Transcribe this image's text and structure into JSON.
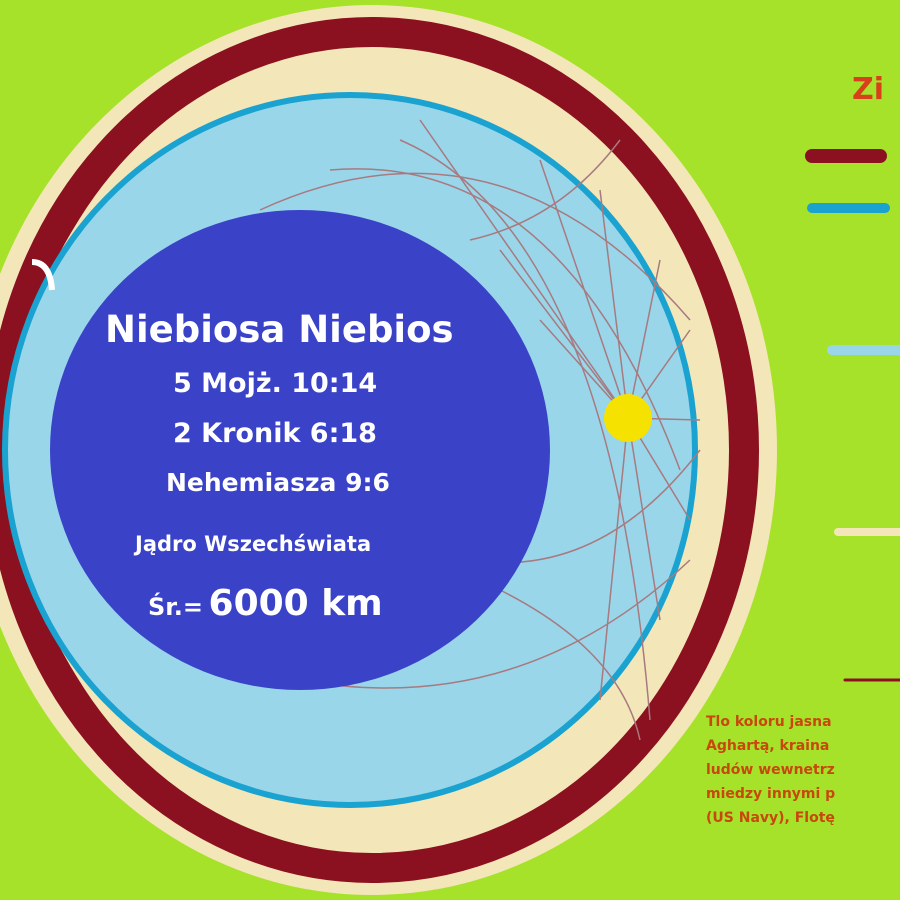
{
  "core": {
    "title": "Niebiosa Niebios",
    "refs": [
      "5 Mojż. 10:14",
      "2 Kronik 6:18",
      "Nehemiasza 9:6"
    ],
    "label": "Jądro Wszechświata",
    "diameter_prefix": "Śr.=",
    "diameter_value": "6000 km"
  },
  "legend": {
    "title": "Zi",
    "line_colors": [
      "#8b1020",
      "#1aa3d0",
      "#9ad6ea",
      "#f3e6b8",
      "#8b1020"
    ]
  },
  "note": {
    "lines": [
      "Tlo koloru jasna",
      "Aghartą, kraina",
      "ludów wewnetrz",
      "miedzy innymi p",
      "(US Navy), Flotę"
    ]
  },
  "colors": {
    "background": "#a6e22a",
    "outer_ring": "#8b1020",
    "cream_band": "#f3e6b8",
    "blue_ring": "#1aa3d0",
    "inner_space": "#9ad6ea",
    "core": "#3a42c8",
    "sun": "#f5e200"
  }
}
